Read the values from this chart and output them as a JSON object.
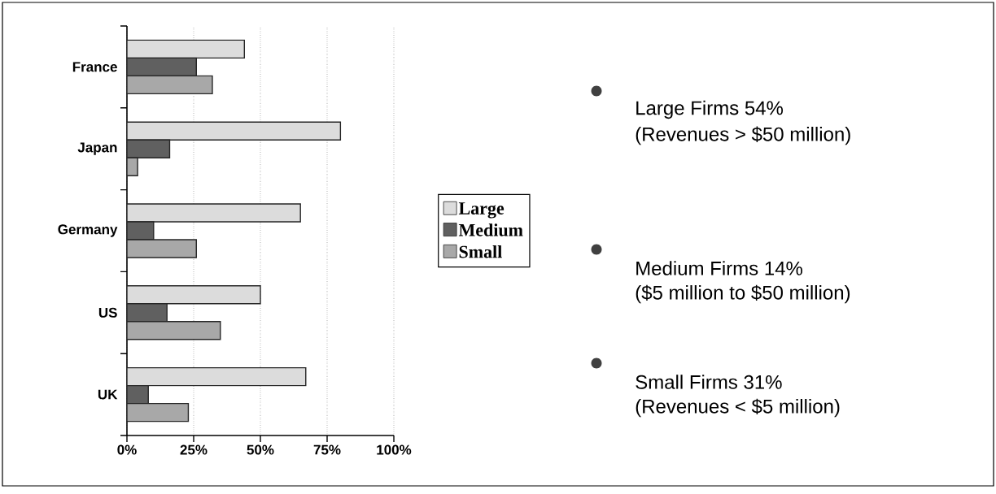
{
  "chart_data": {
    "type": "bar",
    "orientation": "horizontal",
    "categories": [
      "France",
      "Japan",
      "Germany",
      "US",
      "UK"
    ],
    "series": [
      {
        "name": "Large",
        "color": "#dcdcdc",
        "values": [
          44,
          80,
          65,
          50,
          67
        ]
      },
      {
        "name": "Medium",
        "color": "#606060",
        "values": [
          26,
          16,
          10,
          15,
          8
        ]
      },
      {
        "name": "Small",
        "color": "#a8a8a8",
        "values": [
          32,
          4,
          26,
          35,
          23
        ]
      }
    ],
    "xlim": [
      0,
      100
    ],
    "xticks": [
      {
        "value": 0,
        "label": "0%"
      },
      {
        "value": 25,
        "label": "25%"
      },
      {
        "value": 50,
        "label": "50%"
      },
      {
        "value": 75,
        "label": "75%"
      },
      {
        "value": 100,
        "label": "100%"
      }
    ],
    "grid": "x",
    "legend": "right",
    "annotations": [
      "Large Firms 54%",
      "(Revenues > $50 million)",
      "Medium Firms 14%",
      "($5 million to $50 million)",
      "Small Firms 31%",
      "(Revenues < $5 million)"
    ]
  }
}
